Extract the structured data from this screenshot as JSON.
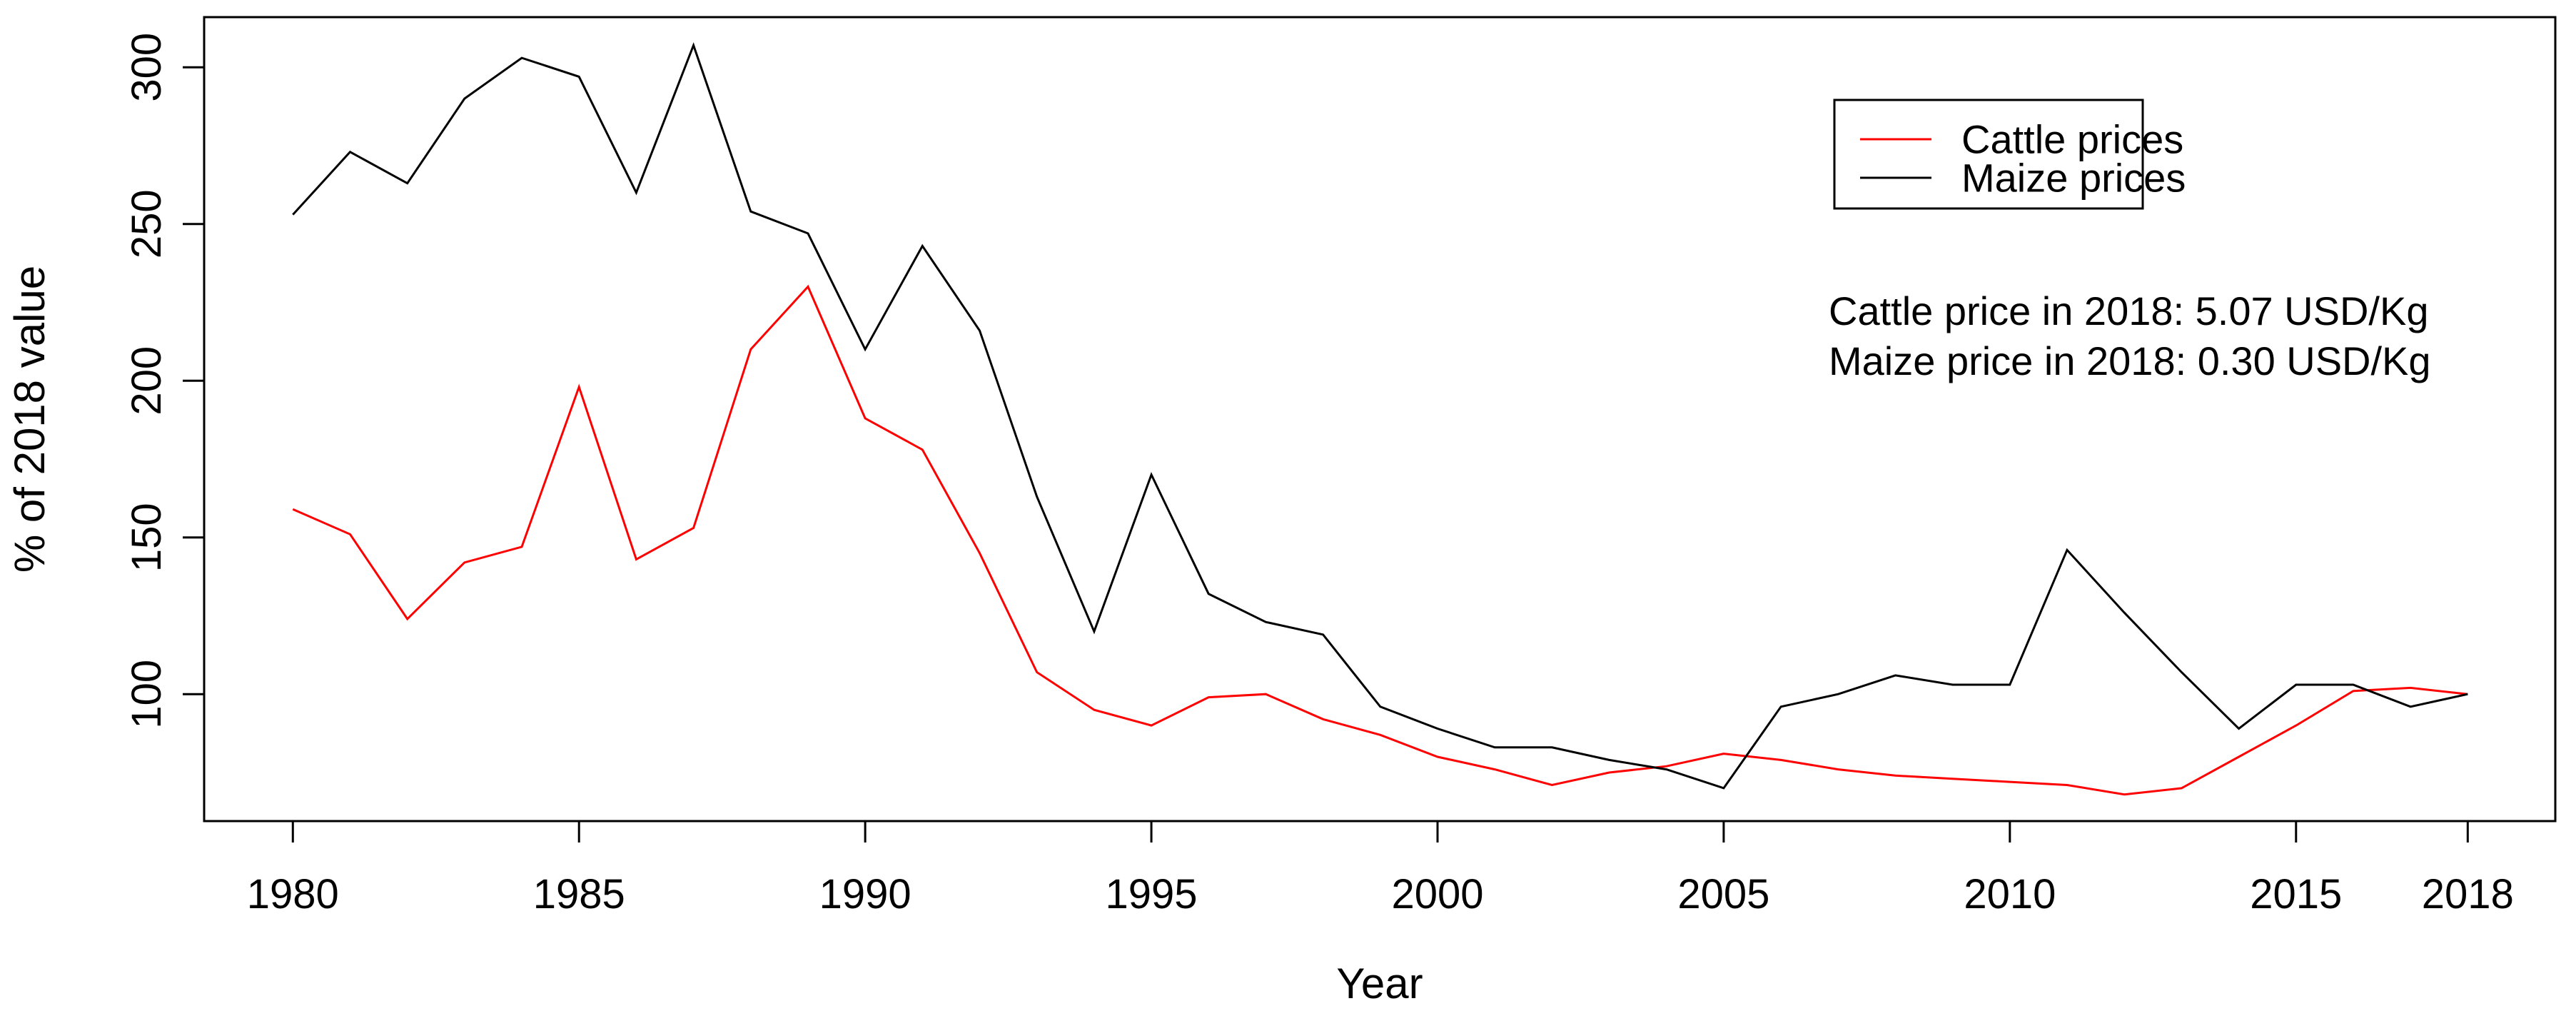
{
  "figure": {
    "background": "#ffffff",
    "axis_color": "#000000"
  },
  "chart_data": {
    "type": "line",
    "title": "",
    "xlabel": "Year",
    "ylabel": "% of 2018 value",
    "x": [
      1980,
      1981,
      1982,
      1983,
      1984,
      1985,
      1986,
      1987,
      1988,
      1989,
      1990,
      1991,
      1992,
      1993,
      1994,
      1995,
      1996,
      1997,
      1998,
      1999,
      2000,
      2001,
      2002,
      2003,
      2004,
      2005,
      2006,
      2007,
      2008,
      2009,
      2010,
      2011,
      2012,
      2013,
      2014,
      2015,
      2016,
      2017,
      2018
    ],
    "series": [
      {
        "name": "Cattle prices",
        "color": "#FF0000",
        "values": [
          159,
          151,
          124,
          142,
          147,
          198,
          143,
          153,
          210,
          230,
          188,
          178,
          145,
          107,
          95,
          90,
          99,
          100,
          92,
          87,
          80,
          76,
          71,
          75,
          77,
          81,
          79,
          76,
          74,
          73,
          72,
          71,
          68,
          70,
          80,
          90,
          101,
          102,
          100
        ]
      },
      {
        "name": "Maize prices",
        "color": "#000000",
        "values": [
          253,
          273,
          263,
          290,
          303,
          297,
          260,
          307,
          254,
          247,
          210,
          243,
          216,
          163,
          120,
          170,
          132,
          123,
          119,
          96,
          89,
          83,
          83,
          79,
          76,
          70,
          96,
          100,
          106,
          103,
          103,
          146,
          126,
          107,
          89,
          103,
          103,
          96,
          100
        ]
      }
    ],
    "x_ticks": [
      1980,
      1985,
      1990,
      1995,
      2000,
      2005,
      2010,
      2015,
      2018
    ],
    "y_ticks": [
      100,
      150,
      200,
      250,
      300
    ],
    "xlim": [
      1978.45,
      2019.53
    ],
    "ylim": [
      59.5,
      316
    ],
    "grid": false,
    "legend_position": "top-right"
  },
  "legend": {
    "items": [
      {
        "label": "Cattle prices",
        "color": "#FF0000"
      },
      {
        "label": "Maize prices",
        "color": "#000000"
      }
    ]
  },
  "annotations": {
    "line1": "Cattle price in 2018: 5.07 USD/Kg",
    "line2": "Maize price in 2018: 0.30 USD/Kg"
  }
}
